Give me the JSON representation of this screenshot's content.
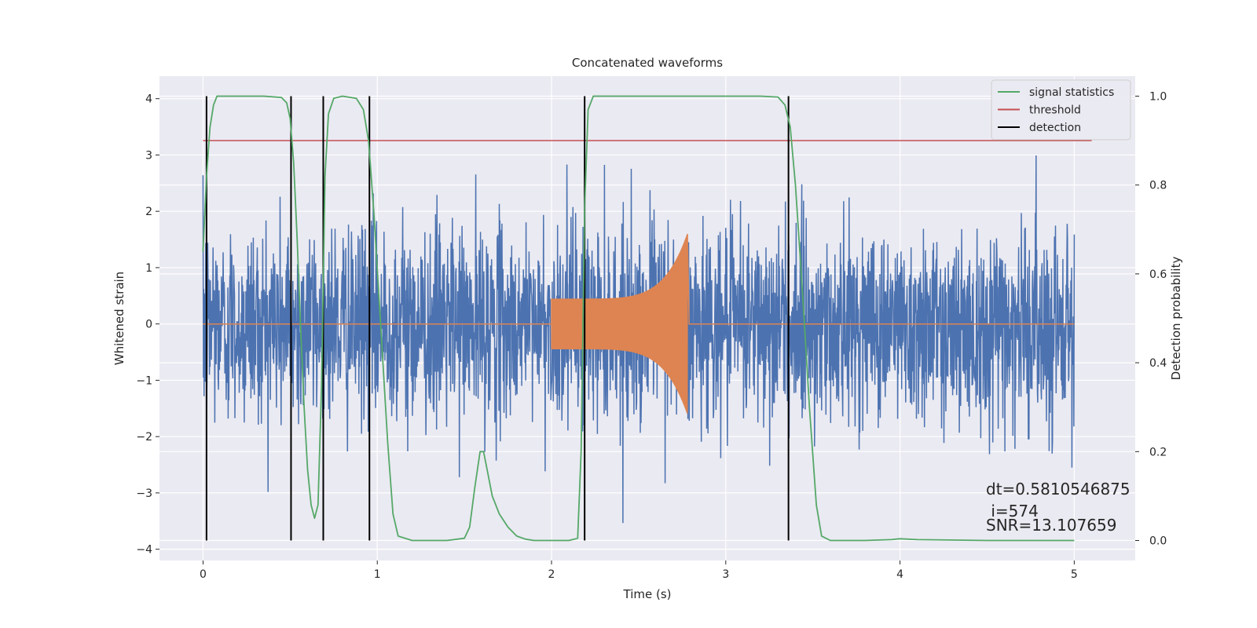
{
  "chart_data": {
    "type": "line",
    "title": "Concatenated waveforms",
    "xlabel": "Time (s)",
    "ylabel": "Whitened strain",
    "y2label": "Detection probability",
    "xlim": [
      -0.25,
      5.35
    ],
    "ylim": [
      -4.2,
      4.4
    ],
    "y2lim": [
      -0.045,
      1.045
    ],
    "xticks": [
      0,
      1,
      2,
      3,
      4,
      5
    ],
    "yticks": [
      -4,
      -3,
      -2,
      -1,
      0,
      1,
      2,
      3,
      4
    ],
    "y2ticks": [
      0.0,
      0.2,
      0.4,
      0.6,
      0.8,
      1.0
    ],
    "y2ticklabels": [
      "0.0",
      "0.2",
      "0.4",
      "0.6",
      "0.8",
      "1.0"
    ],
    "grid": true,
    "legend_position": "top-right",
    "legend": [
      "signal statistics",
      "threshold",
      "detection"
    ],
    "colors": {
      "background": "#eaeaf2",
      "grid": "#ffffff",
      "strain": "#4c72b0",
      "injection": "#dd8452",
      "statistics": "#55a868",
      "threshold": "#c44e52",
      "detection": "#000000"
    },
    "noise": {
      "t_start": 0.0,
      "t_end": 5.0,
      "typical_amplitude": 1.5,
      "peak_amplitude": 4.0
    },
    "injection": {
      "t_start": 2.0,
      "t_end": 2.78,
      "start_amplitude": 0.45,
      "peak_amplitude": 1.6,
      "baseline": 0.0
    },
    "threshold": {
      "t_start": 0.0,
      "t_end": 5.1,
      "probability": 0.9
    },
    "detections": [
      0.02,
      0.505,
      0.69,
      0.955,
      2.19,
      3.36
    ],
    "statistics": {
      "x": [
        0.0,
        0.02,
        0.04,
        0.06,
        0.08,
        0.12,
        0.2,
        0.35,
        0.45,
        0.48,
        0.5,
        0.52,
        0.54,
        0.56,
        0.58,
        0.6,
        0.62,
        0.64,
        0.66,
        0.68,
        0.7,
        0.72,
        0.75,
        0.8,
        0.88,
        0.92,
        0.95,
        0.98,
        1.02,
        1.06,
        1.09,
        1.12,
        1.2,
        1.4,
        1.5,
        1.53,
        1.56,
        1.59,
        1.61,
        1.63,
        1.66,
        1.7,
        1.75,
        1.8,
        1.85,
        1.9,
        2.0,
        2.1,
        2.15,
        2.17,
        2.19,
        2.21,
        2.24,
        2.3,
        2.5,
        3.0,
        3.2,
        3.3,
        3.34,
        3.37,
        3.4,
        3.44,
        3.48,
        3.52,
        3.55,
        3.6,
        3.8,
        3.95,
        4.0,
        4.1,
        4.5,
        5.0
      ],
      "y": [
        0.65,
        0.82,
        0.93,
        0.98,
        1.0,
        1.0,
        1.0,
        1.0,
        0.997,
        0.985,
        0.95,
        0.85,
        0.68,
        0.48,
        0.3,
        0.16,
        0.08,
        0.05,
        0.08,
        0.35,
        0.82,
        0.96,
        0.995,
        1.0,
        0.995,
        0.97,
        0.9,
        0.74,
        0.48,
        0.22,
        0.06,
        0.01,
        0.0,
        0.0,
        0.005,
        0.03,
        0.12,
        0.2,
        0.2,
        0.16,
        0.1,
        0.06,
        0.03,
        0.01,
        0.003,
        0.0,
        0.0,
        0.0,
        0.005,
        0.2,
        0.75,
        0.97,
        1.0,
        1.0,
        1.0,
        1.0,
        1.0,
        0.998,
        0.98,
        0.93,
        0.8,
        0.56,
        0.3,
        0.08,
        0.01,
        0.0,
        0.0,
        0.002,
        0.004,
        0.002,
        0.0,
        0.0
      ]
    },
    "annotation": {
      "lines": [
        "dt=0.5810546875",
        " i=574",
        "SNR=13.107659"
      ]
    }
  }
}
